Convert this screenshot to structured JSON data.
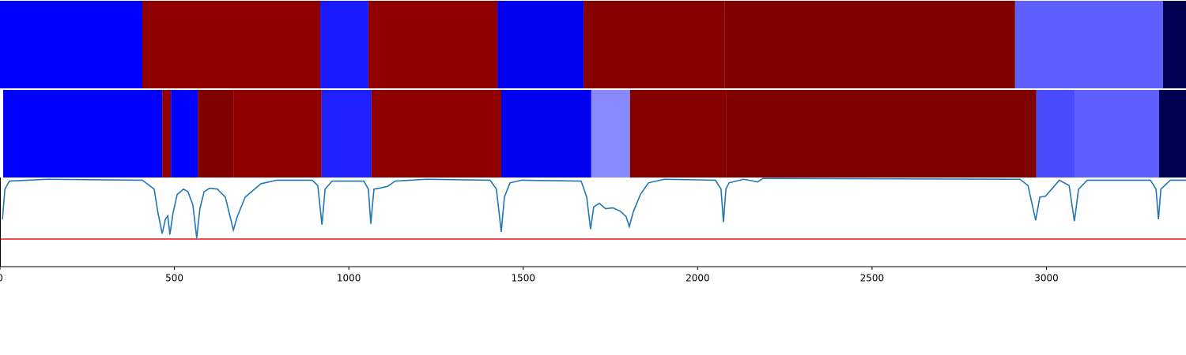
{
  "chart_data": [
    {
      "type": "band",
      "xlim": [
        0,
        3400
      ],
      "edges": [
        0,
        408,
        918,
        1056,
        1426,
        1673,
        2078,
        2910,
        3334,
        3400
      ],
      "colors": [
        "#0000ff",
        "#900000",
        "#1a1aff",
        "#900000",
        "#0000ee",
        "#860000",
        "#800000",
        "#5f5fff",
        "#000050"
      ]
    },
    {
      "type": "band",
      "xlim": [
        0,
        3400
      ],
      "edges": [
        9,
        465,
        490,
        567,
        669,
        922,
        1065,
        1437,
        1695,
        1806,
        2081,
        2971,
        3082,
        3323,
        3400
      ],
      "colors": [
        "#0000ff",
        "#900000",
        "#0000ff",
        "#800000",
        "#900000",
        "#2020ff",
        "#900000",
        "#0000f0",
        "#8888ff",
        "#860000",
        "#800000",
        "#4a4aff",
        "#5f5fff",
        "#000050"
      ]
    },
    {
      "type": "line",
      "xlim": [
        0,
        3400
      ],
      "ylim": [
        0,
        1
      ],
      "xticks": [
        0,
        500,
        1000,
        1500,
        2000,
        2500,
        3000
      ],
      "color": "#1f77b4",
      "threshold": {
        "value": 0.31,
        "color": "#e8141c"
      },
      "x": [
        7,
        14,
        27,
        136,
        408,
        442,
        453,
        465,
        474,
        481,
        487,
        496,
        508,
        526,
        539,
        553,
        564,
        573,
        585,
        601,
        623,
        646,
        669,
        680,
        703,
        748,
        793,
        895,
        911,
        923,
        932,
        952,
        1043,
        1056,
        1063,
        1072,
        1088,
        1111,
        1133,
        1224,
        1405,
        1423,
        1437,
        1446,
        1462,
        1496,
        1666,
        1682,
        1693,
        1702,
        1718,
        1736,
        1757,
        1779,
        1795,
        1804,
        1816,
        1836,
        1859,
        1904,
        2051,
        2067,
        2074,
        2081,
        2090,
        2131,
        2160,
        2172,
        2187,
        2924,
        2947,
        2969,
        2981,
        2997,
        3015,
        3037,
        3065,
        3080,
        3092,
        3117,
        3298,
        3314,
        3321,
        3328,
        3355,
        3400
      ],
      "values": [
        0.53,
        0.87,
        0.96,
        0.98,
        0.97,
        0.87,
        0.6,
        0.37,
        0.53,
        0.57,
        0.36,
        0.6,
        0.81,
        0.87,
        0.84,
        0.69,
        0.32,
        0.65,
        0.84,
        0.88,
        0.87,
        0.78,
        0.41,
        0.56,
        0.78,
        0.93,
        0.97,
        0.97,
        0.91,
        0.47,
        0.87,
        0.96,
        0.96,
        0.87,
        0.48,
        0.87,
        0.88,
        0.9,
        0.96,
        0.98,
        0.97,
        0.87,
        0.39,
        0.78,
        0.94,
        0.97,
        0.96,
        0.78,
        0.42,
        0.67,
        0.71,
        0.65,
        0.66,
        0.62,
        0.56,
        0.45,
        0.62,
        0.81,
        0.94,
        0.98,
        0.97,
        0.87,
        0.5,
        0.87,
        0.94,
        0.98,
        0.96,
        0.95,
        0.99,
        0.98,
        0.91,
        0.52,
        0.78,
        0.79,
        0.87,
        0.97,
        0.91,
        0.51,
        0.87,
        0.97,
        0.97,
        0.87,
        0.53,
        0.87,
        0.97,
        0.97
      ]
    }
  ]
}
